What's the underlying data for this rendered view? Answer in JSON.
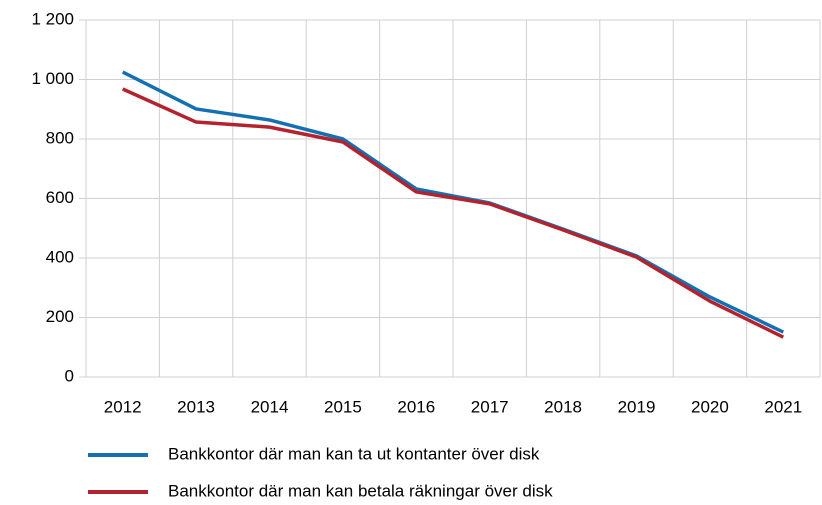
{
  "chart_data": {
    "type": "line",
    "categories": [
      "2012",
      "2013",
      "2014",
      "2015",
      "2016",
      "2017",
      "2018",
      "2019",
      "2020",
      "2021"
    ],
    "series": [
      {
        "name": "Bankkontor där man kan ta ut kontanter över disk",
        "color": "#1470b3",
        "values": [
          1025,
          901,
          864,
          800,
          632,
          585,
          497,
          407,
          269,
          151
        ]
      },
      {
        "name": "Bankkontor där man kan betala räkningar över disk",
        "color": "#b3232e",
        "values": [
          968,
          857,
          840,
          790,
          622,
          582,
          494,
          403,
          255,
          134
        ]
      }
    ],
    "ylim": [
      0,
      1200
    ],
    "yticks": [
      0,
      200,
      400,
      600,
      800,
      {
        "value": 1000,
        "label": "1 000"
      },
      {
        "value": 1200,
        "label": "1 200"
      }
    ],
    "grid": true
  }
}
